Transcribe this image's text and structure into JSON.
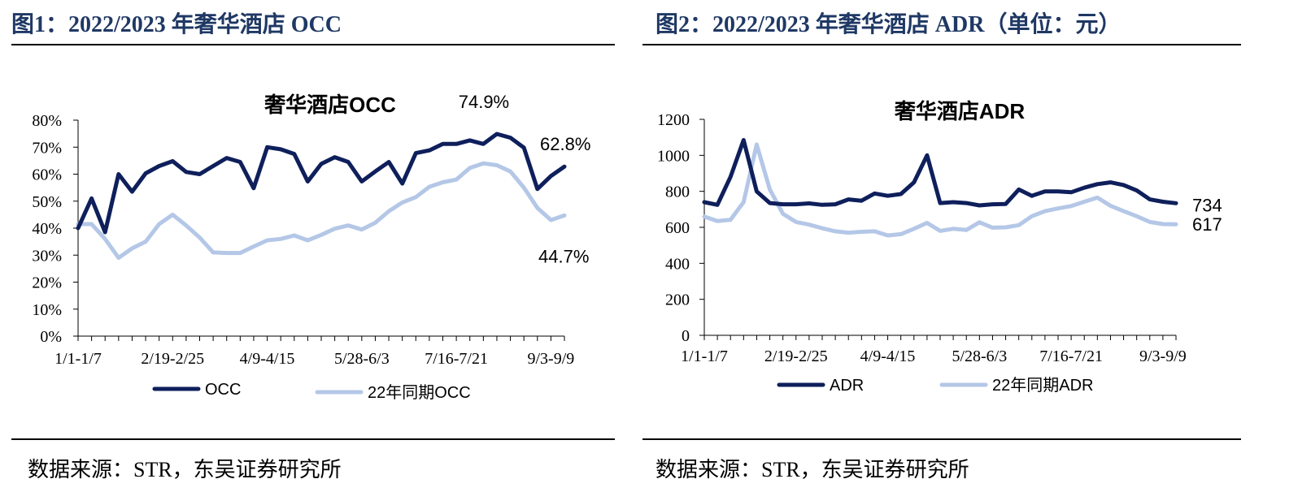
{
  "figures": [
    {
      "header": "图1：2022/2023 年奢华酒店 OCC",
      "source": "数据来源：STR，东吴证券研究所"
    },
    {
      "header": "图2：2022/2023 年奢华酒店 ADR（单位：元）",
      "source": "数据来源：STR，东吴证券研究所"
    }
  ],
  "chart_data": [
    {
      "type": "line",
      "title": "奢华酒店OCC",
      "xlabel": "",
      "ylabel": "",
      "ylim": [
        0,
        80
      ],
      "yticks": [
        "0%",
        "10%",
        "20%",
        "30%",
        "40%",
        "50%",
        "60%",
        "70%",
        "80%"
      ],
      "x_tick_labels": [
        "1/1-1/7",
        "2/19-2/25",
        "4/9-4/15",
        "5/28-6/3",
        "7/16-7/21",
        "9/3-9/9"
      ],
      "x_tick_indices": [
        0,
        7,
        14,
        21,
        28,
        35
      ],
      "n_points": 37,
      "series": [
        {
          "name": "OCC",
          "color": "#0e1f5b",
          "values": [
            40,
            51,
            38.5,
            60,
            53.5,
            60.3,
            63,
            64.8,
            60.8,
            60,
            63,
            66,
            64.5,
            54.8,
            70,
            69.2,
            67.5,
            57.3,
            63.8,
            66.3,
            64.5,
            57.3,
            61,
            64.5,
            56.5,
            67.8,
            68.8,
            71.2,
            71.2,
            72.5,
            71.2,
            74.9,
            73.5,
            69.8,
            54.5,
            59.3,
            62.8
          ],
          "end_label": "62.8%",
          "peak_label": "74.9%"
        },
        {
          "name": "22年同期OCC",
          "color": "#b4c7e7",
          "values": [
            41.5,
            41.5,
            36,
            29,
            32.5,
            35,
            41.5,
            45,
            41,
            36.5,
            31,
            30.8,
            30.8,
            33.2,
            35.5,
            36,
            37.3,
            35.5,
            37.5,
            39.8,
            41,
            39.5,
            42,
            46.3,
            49.5,
            51.5,
            55.3,
            57,
            58,
            62.3,
            64,
            63.3,
            61,
            55,
            47.5,
            43,
            44.7
          ],
          "end_label": "44.7%"
        }
      ],
      "legend_position": "bottom"
    },
    {
      "type": "line",
      "title": "奢华酒店ADR",
      "xlabel": "",
      "ylabel": "",
      "ylim": [
        0,
        1200
      ],
      "yticks": [
        "0",
        "200",
        "400",
        "600",
        "800",
        "1000",
        "1200"
      ],
      "x_tick_labels": [
        "1/1-1/7",
        "2/19-2/25",
        "4/9-4/15",
        "5/28-6/3",
        "7/16-7/21",
        "9/3-9/9"
      ],
      "x_tick_indices": [
        0,
        7,
        14,
        21,
        28,
        35
      ],
      "n_points": 37,
      "series": [
        {
          "name": "ADR",
          "color": "#0e1f5b",
          "values": [
            740,
            725,
            880,
            1085,
            800,
            735,
            728,
            728,
            733,
            725,
            728,
            755,
            748,
            788,
            775,
            785,
            850,
            1000,
            735,
            740,
            735,
            722,
            728,
            730,
            810,
            775,
            800,
            800,
            795,
            820,
            840,
            850,
            835,
            805,
            755,
            742,
            734
          ],
          "end_label": "734"
        },
        {
          "name": "22年同期ADR",
          "color": "#b4c7e7",
          "values": [
            660,
            635,
            642,
            740,
            1060,
            810,
            675,
            630,
            615,
            595,
            578,
            570,
            575,
            578,
            555,
            562,
            592,
            625,
            580,
            592,
            585,
            628,
            598,
            600,
            612,
            662,
            690,
            705,
            718,
            742,
            765,
            720,
            690,
            662,
            630,
            618,
            617
          ],
          "end_label": "617"
        }
      ],
      "legend_position": "bottom"
    }
  ]
}
